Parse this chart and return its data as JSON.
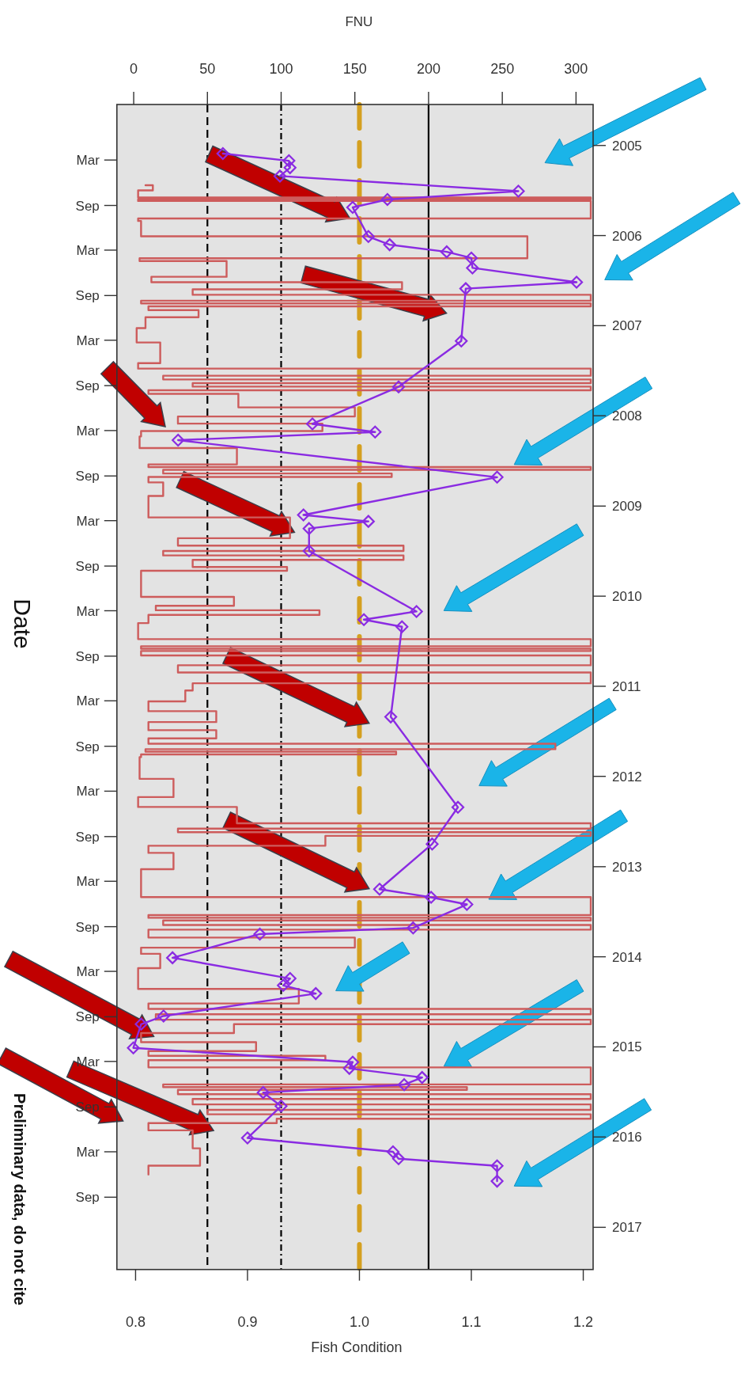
{
  "chart_data": {
    "type": "line",
    "orientation": "horizontal",
    "xlabel": "Fish Condition",
    "x2label": "FNU",
    "ylabel": "Date",
    "xlim": [
      0.7833,
      1.2088
    ],
    "xticks": [
      0.8,
      0.9,
      {
        "value": 1.0,
        "label": "1.0"
      },
      1.1,
      1.2
    ],
    "x2lim": [
      -11.4,
      311.6
    ],
    "x2ticks": [
      0,
      50,
      100,
      150,
      200,
      250,
      300
    ],
    "ylim": [
      "2017-06-21",
      "2004-07-19"
    ],
    "yticks": [
      {
        "value": "2005-03-01",
        "label": "Mar"
      },
      {
        "value": "2005-09-01",
        "label": "Sep"
      },
      {
        "value": "2006-03-01",
        "label": "Mar"
      },
      {
        "value": "2006-09-01",
        "label": "Sep"
      },
      {
        "value": "2007-03-01",
        "label": "Mar"
      },
      {
        "value": "2007-09-01",
        "label": "Sep"
      },
      {
        "value": "2008-03-01",
        "label": "Mar"
      },
      {
        "value": "2008-09-01",
        "label": "Sep"
      },
      {
        "value": "2009-03-01",
        "label": "Mar"
      },
      {
        "value": "2009-09-01",
        "label": "Sep"
      },
      {
        "value": "2010-03-01",
        "label": "Mar"
      },
      {
        "value": "2010-09-01",
        "label": "Sep"
      },
      {
        "value": "2011-03-01",
        "label": "Mar"
      },
      {
        "value": "2011-09-01",
        "label": "Sep"
      },
      {
        "value": "2012-03-01",
        "label": "Mar"
      },
      {
        "value": "2012-09-01",
        "label": "Sep"
      },
      {
        "value": "2013-03-01",
        "label": "Mar"
      },
      {
        "value": "2013-09-01",
        "label": "Sep"
      },
      {
        "value": "2014-03-01",
        "label": "Mar"
      },
      {
        "value": "2014-09-01",
        "label": "Sep"
      },
      {
        "value": "2015-03-01",
        "label": "Mar"
      },
      {
        "value": "2015-09-01",
        "label": "Sep"
      },
      {
        "value": "2016-03-01",
        "label": "Mar"
      },
      {
        "value": "2016-09-01",
        "label": "Sep"
      }
    ],
    "y2lim": [
      "2017-06-21",
      "2004-07-19"
    ],
    "y2ticks": [
      {
        "value": "2005-01-01",
        "label": "2005"
      },
      {
        "value": "2006-01-01",
        "label": "2006"
      },
      {
        "value": "2007-01-01",
        "label": "2007"
      },
      {
        "value": "2008-01-01",
        "label": "2008"
      },
      {
        "value": "2009-01-01",
        "label": "2009"
      },
      {
        "value": "2010-01-01",
        "label": "2010"
      },
      {
        "value": "2011-01-01",
        "label": "2011"
      },
      {
        "value": "2012-01-01",
        "label": "2012"
      },
      {
        "value": "2013-01-01",
        "label": "2013"
      },
      {
        "value": "2014-01-01",
        "label": "2014"
      },
      {
        "value": "2015-01-01",
        "label": "2015"
      },
      {
        "value": "2016-01-01",
        "label": "2016"
      },
      {
        "value": "2017-01-01",
        "label": "2017"
      }
    ],
    "grid": false,
    "ref_lines": [
      {
        "axis": "x2",
        "value": 50,
        "color": "#000000",
        "line_style": "dashed"
      },
      {
        "axis": "x2",
        "value": 100,
        "color": "#000000",
        "line_style": "dotted"
      },
      {
        "axis": "x",
        "value": 1.0,
        "color": "#d4a020",
        "line_style": "dashed"
      },
      {
        "axis": "x2",
        "value": 200,
        "color": "#000000",
        "line_style": "solid"
      }
    ],
    "annotations": [
      "Preliminary data, do not cite"
    ],
    "series": [
      {
        "type": "step",
        "axis": "x2",
        "color": "#cd5c5c",
        "marker": "none",
        "x": [
          "2005-06-11",
          "2005-07-02",
          "2005-07-31",
          "2005-08-07",
          "2005-08-14",
          "2005-10-24",
          "2005-11-03",
          "2006-01-04",
          "2006-04-03",
          "2006-04-14",
          "2006-06-17",
          "2006-07-09",
          "2006-08-07",
          "2006-08-29",
          "2006-09-22",
          "2006-10-03",
          "2006-10-15",
          "2006-10-30",
          "2006-11-28",
          "2007-01-11",
          "2007-03-10",
          "2007-06-02",
          "2007-06-24",
          "2007-07-23",
          "2007-08-07",
          "2007-08-22",
          "2007-09-05",
          "2007-09-20",
          "2007-10-04",
          "2007-11-28",
          "2008-01-04",
          "2008-02-02",
          "2008-03-03",
          "2008-03-25",
          "2008-05-11",
          "2008-07-16",
          "2008-07-27",
          "2008-08-07",
          "2008-08-22",
          "2008-09-05",
          "2008-09-27",
          "2008-11-21",
          "2009-02-16",
          "2009-05-11",
          "2009-06-10",
          "2009-07-02",
          "2009-07-20",
          "2009-08-07",
          "2009-09-05",
          "2009-09-20",
          "2009-10-30",
          "2010-01-04",
          "2010-02-09",
          "2010-02-27",
          "2010-03-18",
          "2010-04-20",
          "2010-06-24",
          "2010-07-23",
          "2010-08-02",
          "2010-08-11",
          "2010-08-29",
          "2010-10-08",
          "2010-11-06",
          "2010-12-20",
          "2011-01-18",
          "2011-03-03",
          "2011-04-12",
          "2011-05-26",
          "2011-06-28",
          "2011-07-31",
          "2011-08-22",
          "2011-09-13",
          "2011-09-23",
          "2011-10-04",
          "2011-10-15",
          "2012-01-11",
          "2012-03-25",
          "2012-05-04",
          "2012-07-09",
          "2012-07-31",
          "2012-08-14",
          "2012-08-29",
          "2012-10-08",
          "2012-11-06",
          "2013-01-11",
          "2013-05-04",
          "2013-07-16",
          "2013-07-27",
          "2013-08-07",
          "2013-08-25",
          "2013-09-13",
          "2013-10-15",
          "2013-11-25",
          "2013-12-20",
          "2014-02-16",
          "2014-05-11",
          "2014-07-09",
          "2014-07-31",
          "2014-08-22",
          "2014-09-13",
          "2014-10-01",
          "2014-11-06",
          "2014-12-13",
          "2015-01-18",
          "2015-02-06",
          "2015-02-24",
          "2015-03-25",
          "2015-06-02",
          "2015-06-13",
          "2015-06-24",
          "2015-07-12",
          "2015-07-31",
          "2015-08-22",
          "2015-09-13",
          "2015-10-01",
          "2015-10-19",
          "2015-11-06",
          "2015-12-05",
          "2016-02-16",
          "2016-04-26",
          "2016-06-01"
        ],
        "values": [
          8,
          13,
          3,
          310,
          3,
          310,
          3,
          5,
          267,
          4,
          63,
          12,
          182,
          40,
          310,
          5,
          310,
          10,
          44,
          8,
          2,
          18,
          3,
          310,
          20,
          310,
          40,
          310,
          10,
          71,
          150,
          30,
          128,
          5,
          4,
          70,
          10,
          310,
          20,
          175,
          10,
          20,
          10,
          106,
          30,
          183,
          20,
          183,
          40,
          104,
          5,
          5,
          68,
          15,
          126,
          10,
          3,
          310,
          5,
          310,
          5,
          310,
          30,
          310,
          40,
          35,
          10,
          56,
          10,
          56,
          10,
          286,
          8,
          178,
          5,
          4,
          27,
          3,
          70,
          310,
          30,
          310,
          130,
          10,
          27,
          5,
          310,
          10,
          310,
          20,
          310,
          10,
          150,
          5,
          18,
          3,
          112,
          10,
          310,
          15,
          310,
          68,
          5,
          83,
          10,
          130,
          10,
          310,
          20,
          226,
          30,
          310,
          40,
          310,
          50,
          310,
          97,
          10,
          40,
          45,
          10
        ]
      },
      {
        "color": "#8a2be2",
        "marker": "diamond",
        "x": [
          "2005-02-03",
          "2005-03-04",
          "2005-04-01",
          "2005-05-05",
          "2005-07-05",
          "2005-08-08",
          "2005-09-09",
          "2006-01-05",
          "2006-02-07",
          "2006-03-08",
          "2006-04-02",
          "2006-05-12",
          "2006-07-09",
          "2006-08-04",
          "2007-03-04",
          "2007-09-06",
          "2008-02-03",
          "2008-03-07",
          "2008-04-09",
          "2008-09-06",
          "2009-02-06",
          "2009-03-04",
          "2009-04-02",
          "2009-07-02",
          "2010-03-04",
          "2010-04-06",
          "2010-05-05",
          "2011-05-05",
          "2012-05-05",
          "2012-10-01",
          "2013-04-02",
          "2013-05-05",
          "2013-06-03",
          "2013-09-06",
          "2013-10-01",
          "2014-01-05",
          "2014-03-30",
          "2014-04-27",
          "2014-05-30",
          "2014-08-29",
          "2014-10-01",
          "2015-01-05",
          "2015-03-04",
          "2015-03-29",
          "2015-05-05",
          "2015-06-03",
          "2015-07-05",
          "2015-08-29",
          "2016-01-05",
          "2016-03-01",
          "2016-03-29",
          "2016-04-27",
          "2016-06-28"
        ],
        "values": [
          0.878,
          0.937,
          0.938,
          0.929,
          1.142,
          1.025,
          0.994,
          1.008,
          1.027,
          1.078,
          1.1,
          1.101,
          1.194,
          1.095,
          1.091,
          1.035,
          0.958,
          1.014,
          0.838,
          1.123,
          0.95,
          1.008,
          0.955,
          0.955,
          1.051,
          1.004,
          1.038,
          1.028,
          1.088,
          1.065,
          1.018,
          1.064,
          1.096,
          1.048,
          0.911,
          0.833,
          0.938,
          0.932,
          0.961,
          0.825,
          0.805,
          0.798,
          0.994,
          0.991,
          1.056,
          1.04,
          0.914,
          0.93,
          0.9,
          1.03,
          1.035,
          1.123,
          1.123
        ]
      }
    ]
  }
}
